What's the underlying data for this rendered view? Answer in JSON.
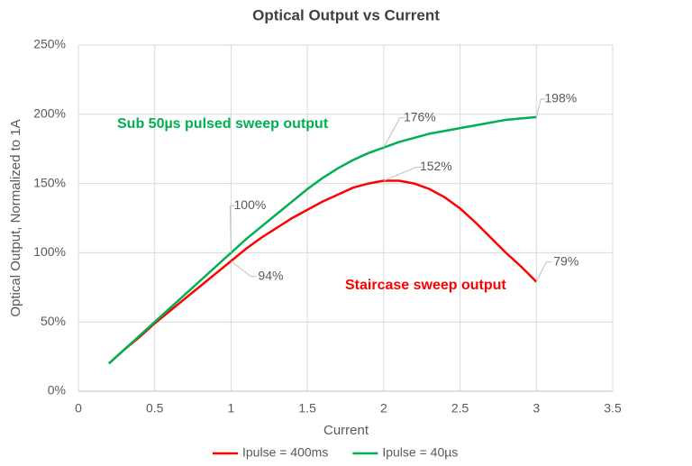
{
  "chart_data": {
    "type": "line",
    "title": "Optical Output vs Current",
    "x_label": "Current",
    "y_label": "Optical Output, Normalized to 1A",
    "x": [
      0.2,
      0.3,
      0.4,
      0.5,
      0.6,
      0.7,
      0.8,
      0.9,
      1.0,
      1.1,
      1.2,
      1.3,
      1.4,
      1.5,
      1.6,
      1.7,
      1.8,
      1.9,
      2.0,
      2.1,
      2.2,
      2.3,
      2.4,
      2.5,
      2.6,
      2.7,
      2.8,
      2.9,
      3.0
    ],
    "series": [
      {
        "name": "Ipulse = 400ms",
        "color": "#ff0000",
        "values": [
          20,
          30,
          39,
          49,
          58,
          67,
          76,
          85,
          94,
          103,
          111,
          118,
          125,
          131,
          137,
          142,
          147,
          150,
          152,
          152,
          150,
          146,
          140,
          132,
          122,
          111,
          100,
          90,
          79
        ],
        "value_labels": [
          null,
          null,
          null,
          null,
          null,
          null,
          null,
          null,
          "94%",
          null,
          null,
          null,
          null,
          null,
          null,
          null,
          null,
          null,
          "152%",
          null,
          null,
          null,
          null,
          null,
          null,
          null,
          null,
          null,
          "79%"
        ]
      },
      {
        "name": "Ipulse = 40µs",
        "color": "#00b050",
        "values": [
          20,
          30,
          40,
          50,
          60,
          70,
          80,
          90,
          100,
          110,
          119,
          128,
          137,
          146,
          154,
          161,
          167,
          172,
          176,
          180,
          183,
          186,
          188,
          190,
          192,
          194,
          196,
          197,
          198
        ],
        "value_labels": [
          null,
          null,
          null,
          null,
          null,
          null,
          null,
          null,
          "100%",
          null,
          null,
          null,
          null,
          null,
          null,
          null,
          null,
          null,
          "176%",
          null,
          null,
          null,
          null,
          null,
          null,
          null,
          null,
          null,
          "198%"
        ]
      }
    ],
    "annotations": [
      {
        "text": "Sub 50µs pulsed sweep output",
        "color": "#00b050"
      },
      {
        "text": "Staircase sweep output",
        "color": "#ff0000"
      }
    ],
    "xlim": [
      0,
      3.5
    ],
    "xticks": [
      0,
      0.5,
      1,
      1.5,
      2,
      2.5,
      3,
      3.5
    ],
    "ylim": [
      0,
      250
    ],
    "yticks": [
      {
        "value": 0,
        "label": "0%"
      },
      {
        "value": 50,
        "label": "50%"
      },
      {
        "value": 100,
        "label": "100%"
      },
      {
        "value": 150,
        "label": "150%"
      },
      {
        "value": 200,
        "label": "200%"
      },
      {
        "value": 250,
        "label": "250%"
      }
    ],
    "grid": true,
    "legend": "bottom"
  }
}
